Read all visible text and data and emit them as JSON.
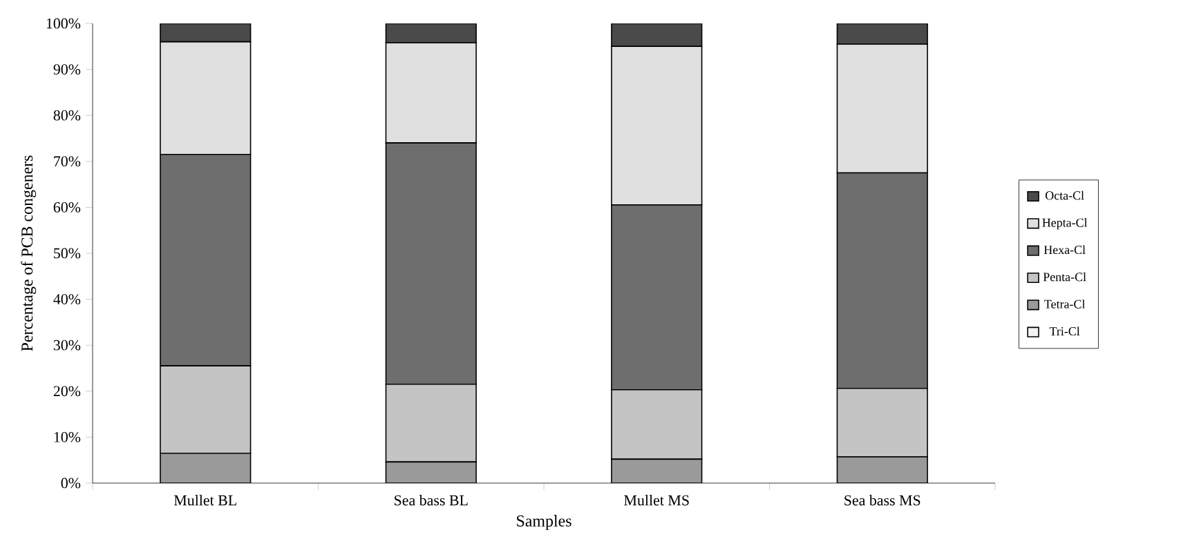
{
  "chart_data": {
    "type": "bar",
    "stacked": true,
    "xlabel": "Samples",
    "ylabel": "Percentage of PCB congeners",
    "categories": [
      "Mullet BL",
      "Sea bass BL",
      "Mullet MS",
      "Sea bass MS"
    ],
    "series": [
      {
        "name": "Tri-Cl",
        "color": "#f2f2f2",
        "values": [
          0,
          0,
          0,
          0
        ]
      },
      {
        "name": "Tetra-Cl",
        "color": "#9a9a9a",
        "values": [
          6.5,
          4.6,
          5.2,
          5.7
        ]
      },
      {
        "name": "Penta-Cl",
        "color": "#c4c4c4",
        "values": [
          19,
          16.9,
          15.1,
          14.9
        ]
      },
      {
        "name": "Hexa-Cl",
        "color": "#6e6e6e",
        "values": [
          46,
          52.5,
          40.2,
          46.9
        ]
      },
      {
        "name": "Hepta-Cl",
        "color": "#e0e0e0",
        "values": [
          24.5,
          21.8,
          34.5,
          28
        ]
      },
      {
        "name": "Octa-Cl",
        "color": "#4a4a4a",
        "values": [
          4,
          4.2,
          5,
          4.5
        ]
      }
    ],
    "ylim": [
      0,
      100
    ],
    "yticks": [
      {
        "value": 0,
        "label": "0%"
      },
      {
        "value": 10,
        "label": "10%"
      },
      {
        "value": 20,
        "label": "20%"
      },
      {
        "value": 30,
        "label": "30%"
      },
      {
        "value": 40,
        "label": "40%"
      },
      {
        "value": 50,
        "label": "50%"
      },
      {
        "value": 60,
        "label": "60%"
      },
      {
        "value": 70,
        "label": "70%"
      },
      {
        "value": 80,
        "label": "80%"
      },
      {
        "value": 90,
        "label": "90%"
      },
      {
        "value": 100,
        "label": "100%"
      }
    ],
    "legend": "right",
    "grid": false
  }
}
